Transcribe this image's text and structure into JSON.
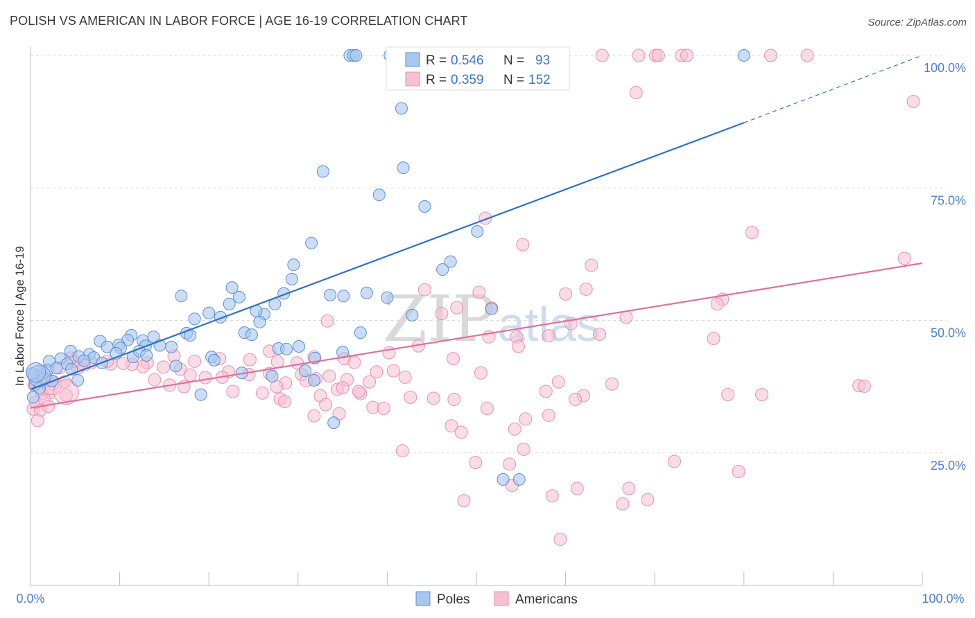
{
  "header": {
    "title": "POLISH VS AMERICAN IN LABOR FORCE | AGE 16-19 CORRELATION CHART",
    "source": "Source: ZipAtlas.com"
  },
  "watermark": {
    "zip": "ZIP",
    "atlas": "atlas"
  },
  "legend": {
    "poles": {
      "r_label": "R =",
      "r_value": "0.546",
      "n_label": "N =",
      "n_value": "93"
    },
    "americans": {
      "r_label": "R =",
      "r_value": "0.359",
      "n_label": "N =",
      "n_value": "152"
    }
  },
  "bottom_legend": {
    "poles": "Poles",
    "americans": "Americans"
  },
  "colors": {
    "poles_fill": "#a9c6ee",
    "poles_stroke": "#5b8fd8",
    "poles_line": "#2f6fce",
    "americans_fill": "#f6bfd2",
    "americans_stroke": "#e88fb0",
    "americans_line": "#e0709a",
    "grid": "#d9d9d9",
    "tick_label": "#4a7fd0"
  },
  "chart_data": {
    "type": "scatter",
    "title": "POLISH VS AMERICAN IN LABOR FORCE | AGE 16-19 CORRELATION CHART",
    "xlabel": "",
    "ylabel": "In Labor Force | Age 16-19",
    "xlim": [
      0,
      100
    ],
    "ylim": [
      0,
      100
    ],
    "x_tick_labels": [
      "0.0%",
      "100.0%"
    ],
    "y_tick_labels": [
      "25.0%",
      "50.0%",
      "75.0%",
      "100.0%"
    ],
    "y_ticks": [
      25,
      50,
      75,
      100
    ],
    "grid": true,
    "series": [
      {
        "name": "Poles",
        "trendline": {
          "x": [
            0,
            80
          ],
          "y": [
            37.0,
            87.3
          ],
          "dashed_to": [
            100,
            100
          ]
        },
        "points": [
          [
            35.8,
            100
          ],
          [
            36.2,
            100
          ],
          [
            36.5,
            100
          ],
          [
            40.3,
            100
          ],
          [
            80.0,
            100
          ],
          [
            42.3,
            99.8
          ],
          [
            42.6,
            94.7
          ],
          [
            41.6,
            90.0
          ],
          [
            41.8,
            78.8
          ],
          [
            32.8,
            78.1
          ],
          [
            39.1,
            73.7
          ],
          [
            44.2,
            71.5
          ],
          [
            50.1,
            66.8
          ],
          [
            31.5,
            64.6
          ],
          [
            47.1,
            61.1
          ],
          [
            46.2,
            59.6
          ],
          [
            29.5,
            60.5
          ],
          [
            29.3,
            57.8
          ],
          [
            22.6,
            56.2
          ],
          [
            28.4,
            55.1
          ],
          [
            23.4,
            54.4
          ],
          [
            33.6,
            54.8
          ],
          [
            35.1,
            54.6
          ],
          [
            37.7,
            55.2
          ],
          [
            40.0,
            54.3
          ],
          [
            16.9,
            54.6
          ],
          [
            22.3,
            53.1
          ],
          [
            27.4,
            53.1
          ],
          [
            18.4,
            50.3
          ],
          [
            21.3,
            50.6
          ],
          [
            20.0,
            51.4
          ],
          [
            26.2,
            51.2
          ],
          [
            25.3,
            51.8
          ],
          [
            25.7,
            49.7
          ],
          [
            51.7,
            52.2
          ],
          [
            42.8,
            51.0
          ],
          [
            17.5,
            47.6
          ],
          [
            17.9,
            47.2
          ],
          [
            24.0,
            47.7
          ],
          [
            24.8,
            47.3
          ],
          [
            37.0,
            47.7
          ],
          [
            7.8,
            46.1
          ],
          [
            11.3,
            47.2
          ],
          [
            10.9,
            46.3
          ],
          [
            12.6,
            46.2
          ],
          [
            13.8,
            46.9
          ],
          [
            8.6,
            45.0
          ],
          [
            9.9,
            45.4
          ],
          [
            10.1,
            44.8
          ],
          [
            12.9,
            45.2
          ],
          [
            15.8,
            45.0
          ],
          [
            14.5,
            45.3
          ],
          [
            4.5,
            44.2
          ],
          [
            6.6,
            43.6
          ],
          [
            7.1,
            43.0
          ],
          [
            5.4,
            43.2
          ],
          [
            9.6,
            43.8
          ],
          [
            11.5,
            43.1
          ],
          [
            12.2,
            44.2
          ],
          [
            13.0,
            43.4
          ],
          [
            27.8,
            44.7
          ],
          [
            28.7,
            44.6
          ],
          [
            30.1,
            45.1
          ],
          [
            35.0,
            44.0
          ],
          [
            2.1,
            42.3
          ],
          [
            3.4,
            42.8
          ],
          [
            4.1,
            41.8
          ],
          [
            6.0,
            42.4
          ],
          [
            8.0,
            42.0
          ],
          [
            16.3,
            41.4
          ],
          [
            20.3,
            43.1
          ],
          [
            20.6,
            42.5
          ],
          [
            31.9,
            42.9
          ],
          [
            1.2,
            40.4
          ],
          [
            1.9,
            40.6
          ],
          [
            2.9,
            41.0
          ],
          [
            4.6,
            40.8
          ],
          [
            0.8,
            39.5
          ],
          [
            1.5,
            39.0
          ],
          [
            2.4,
            38.6
          ],
          [
            5.3,
            38.7
          ],
          [
            27.1,
            39.5
          ],
          [
            30.8,
            40.5
          ],
          [
            31.8,
            38.7
          ],
          [
            23.7,
            40.1
          ],
          [
            0.5,
            37.9
          ],
          [
            1.0,
            37.2
          ],
          [
            19.1,
            36.0
          ],
          [
            34.0,
            30.7
          ],
          [
            53.0,
            20.0
          ],
          [
            54.8,
            20.0
          ],
          [
            0.3,
            35.5
          ],
          [
            0.2,
            40.0
          ]
        ]
      },
      {
        "name": "Americans",
        "trendline": {
          "x": [
            0,
            100
          ],
          "y": [
            33.5,
            60.8
          ]
        },
        "points": [
          [
            64.1,
            100
          ],
          [
            68.2,
            100
          ],
          [
            70.1,
            100
          ],
          [
            70.4,
            100
          ],
          [
            73.0,
            100
          ],
          [
            73.6,
            100
          ],
          [
            83.0,
            100
          ],
          [
            87.1,
            100
          ],
          [
            67.9,
            93.0
          ],
          [
            99.0,
            91.3
          ],
          [
            80.9,
            66.6
          ],
          [
            51.0,
            69.3
          ],
          [
            55.2,
            64.3
          ],
          [
            62.9,
            60.4
          ],
          [
            98.0,
            61.7
          ],
          [
            50.3,
            55.3
          ],
          [
            44.2,
            55.8
          ],
          [
            62.3,
            55.9
          ],
          [
            60.0,
            55.0
          ],
          [
            77.6,
            54.0
          ],
          [
            77.0,
            53.1
          ],
          [
            47.8,
            52.4
          ],
          [
            51.7,
            52.3
          ],
          [
            46.1,
            51.3
          ],
          [
            66.8,
            50.6
          ],
          [
            60.6,
            49.4
          ],
          [
            33.3,
            49.9
          ],
          [
            54.5,
            46.9
          ],
          [
            58.1,
            47.1
          ],
          [
            63.8,
            47.4
          ],
          [
            76.6,
            46.6
          ],
          [
            51.4,
            46.9
          ],
          [
            54.7,
            45.1
          ],
          [
            43.5,
            45.2
          ],
          [
            26.8,
            44.2
          ],
          [
            31.8,
            43.1
          ],
          [
            40.2,
            43.9
          ],
          [
            47.4,
            42.8
          ],
          [
            16.1,
            43.3
          ],
          [
            18.4,
            42.3
          ],
          [
            21.2,
            42.8
          ],
          [
            24.6,
            42.6
          ],
          [
            27.7,
            42.2
          ],
          [
            29.9,
            42.0
          ],
          [
            35.2,
            42.8
          ],
          [
            36.3,
            42.1
          ],
          [
            13.1,
            42.0
          ],
          [
            12.6,
            41.3
          ],
          [
            11.4,
            41.7
          ],
          [
            10.4,
            41.9
          ],
          [
            9.0,
            41.8
          ],
          [
            8.6,
            42.3
          ],
          [
            6.8,
            42.0
          ],
          [
            6.0,
            41.6
          ],
          [
            5.3,
            41.0
          ],
          [
            4.9,
            42.3
          ],
          [
            4.5,
            42.9
          ],
          [
            3.3,
            41.1
          ],
          [
            14.9,
            41.2
          ],
          [
            16.8,
            40.8
          ],
          [
            22.2,
            40.3
          ],
          [
            38.8,
            40.3
          ],
          [
            40.7,
            40.5
          ],
          [
            50.5,
            40.1
          ],
          [
            17.9,
            39.7
          ],
          [
            19.6,
            39.2
          ],
          [
            21.5,
            39.3
          ],
          [
            24.5,
            39.8
          ],
          [
            26.8,
            40.0
          ],
          [
            30.4,
            39.8
          ],
          [
            32.0,
            39.0
          ],
          [
            33.5,
            39.5
          ],
          [
            35.5,
            38.8
          ],
          [
            42.0,
            39.3
          ],
          [
            1.9,
            38.8
          ],
          [
            2.5,
            38.0
          ],
          [
            3.8,
            38.4
          ],
          [
            13.9,
            38.8
          ],
          [
            28.6,
            38.2
          ],
          [
            30.9,
            38.6
          ],
          [
            38.0,
            38.4
          ],
          [
            59.2,
            38.4
          ],
          [
            65.2,
            38.0
          ],
          [
            92.9,
            37.7
          ],
          [
            93.5,
            37.6
          ],
          [
            17.2,
            37.5
          ],
          [
            27.6,
            37.5
          ],
          [
            34.4,
            37.0
          ],
          [
            35.0,
            37.3
          ],
          [
            37.0,
            36.2
          ],
          [
            57.8,
            36.6
          ],
          [
            62.0,
            35.8
          ],
          [
            78.2,
            36.0
          ],
          [
            82.0,
            36.0
          ],
          [
            1.3,
            36.2
          ],
          [
            2.2,
            36.4
          ],
          [
            22.7,
            36.6
          ],
          [
            26.0,
            36.3
          ],
          [
            28.0,
            35.2
          ],
          [
            32.5,
            35.8
          ],
          [
            36.8,
            36.6
          ],
          [
            42.6,
            35.5
          ],
          [
            45.2,
            35.3
          ],
          [
            47.5,
            35.1
          ],
          [
            61.1,
            35.1
          ],
          [
            28.5,
            34.7
          ],
          [
            33.1,
            34.1
          ],
          [
            38.4,
            33.6
          ],
          [
            39.6,
            33.4
          ],
          [
            31.8,
            32.0
          ],
          [
            34.6,
            32.4
          ],
          [
            51.2,
            33.4
          ],
          [
            55.5,
            31.4
          ],
          [
            58.1,
            32.1
          ],
          [
            0.3,
            33.3
          ],
          [
            0.8,
            31.1
          ],
          [
            1.1,
            33.1
          ],
          [
            47.2,
            30.1
          ],
          [
            48.3,
            28.9
          ],
          [
            54.3,
            29.5
          ],
          [
            41.7,
            25.4
          ],
          [
            55.3,
            25.7
          ],
          [
            49.9,
            23.2
          ],
          [
            53.7,
            22.9
          ],
          [
            72.2,
            23.4
          ],
          [
            79.4,
            21.5
          ],
          [
            54.0,
            18.9
          ],
          [
            61.3,
            18.3
          ],
          [
            67.1,
            18.3
          ],
          [
            48.6,
            16.0
          ],
          [
            58.5,
            16.9
          ],
          [
            69.2,
            16.2
          ],
          [
            66.4,
            15.4
          ],
          [
            59.4,
            8.7
          ],
          [
            0.6,
            34.6
          ],
          [
            1.6,
            34.9
          ],
          [
            2.0,
            33.8
          ],
          [
            4.0,
            35.9
          ],
          [
            0.4,
            37.8
          ],
          [
            15.6,
            37.8
          ]
        ]
      }
    ]
  }
}
